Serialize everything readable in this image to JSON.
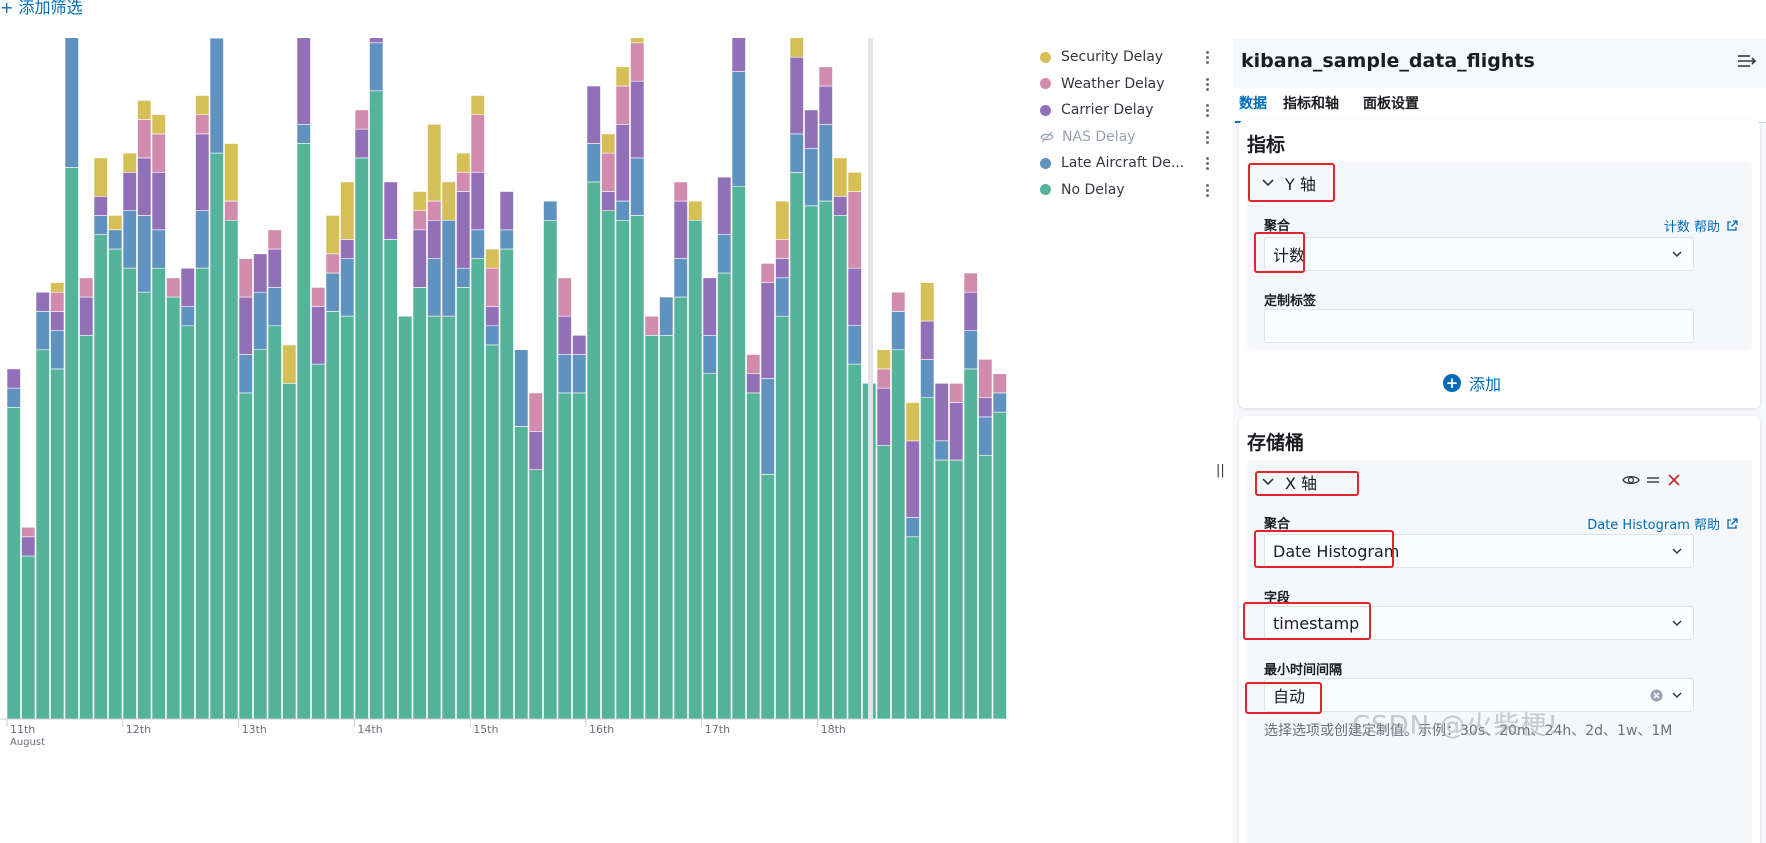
{
  "top_bar": {
    "add_filter": "+ 添加筛选"
  },
  "legend": [
    {
      "label": "Security Delay",
      "color": "#d6bf57",
      "hidden": false
    },
    {
      "label": "Weather Delay",
      "color": "#d18cad",
      "hidden": false
    },
    {
      "label": "Carrier Delay",
      "color": "#9170b8",
      "hidden": false
    },
    {
      "label": "NAS Delay",
      "color": "#98a2b3",
      "hidden": true
    },
    {
      "label": "Late Aircraft De...",
      "color": "#6092c0",
      "hidden": false
    },
    {
      "label": "No Delay",
      "color": "#54b399",
      "hidden": false
    }
  ],
  "chart_data": {
    "type": "bar",
    "stacked": true,
    "x_ticks": [
      "11th",
      "12th",
      "13th",
      "14th",
      "15th",
      "16th",
      "17th",
      "18th"
    ],
    "x_sublabel": "August",
    "grid": false,
    "legend_position": "top-right",
    "series_order": [
      "No Delay",
      "Late Aircraft Delay",
      "NAS Delay",
      "Carrier Delay",
      "Weather Delay",
      "Security Delay"
    ],
    "bars": [
      [
        325,
        20,
        0,
        20,
        0,
        0
      ],
      [
        170,
        0,
        0,
        20,
        10,
        0
      ],
      [
        385,
        40,
        0,
        20,
        0,
        0
      ],
      [
        365,
        40,
        0,
        20,
        20,
        10
      ],
      [
        575,
        140,
        0,
        0,
        80,
        0
      ],
      [
        400,
        0,
        0,
        40,
        20,
        0
      ],
      [
        505,
        20,
        0,
        20,
        0,
        40
      ],
      [
        490,
        20,
        0,
        0,
        0,
        15
      ],
      [
        470,
        60,
        0,
        40,
        0,
        20
      ],
      [
        445,
        80,
        0,
        60,
        40,
        20
      ],
      [
        470,
        40,
        0,
        60,
        40,
        20
      ],
      [
        440,
        0,
        0,
        0,
        20,
        0
      ],
      [
        410,
        20,
        0,
        40,
        0,
        0
      ],
      [
        470,
        60,
        0,
        80,
        20,
        20
      ],
      [
        590,
        120,
        0,
        20,
        60,
        20
      ],
      [
        520,
        0,
        0,
        0,
        20,
        60
      ],
      [
        340,
        40,
        0,
        60,
        40,
        0
      ],
      [
        385,
        60,
        0,
        40,
        0,
        0
      ],
      [
        410,
        40,
        0,
        40,
        20,
        0
      ],
      [
        350,
        0,
        0,
        0,
        0,
        40
      ],
      [
        600,
        20,
        0,
        100,
        0,
        0
      ],
      [
        370,
        0,
        0,
        60,
        20,
        0
      ],
      [
        425,
        40,
        0,
        0,
        20,
        40
      ],
      [
        420,
        60,
        0,
        20,
        0,
        60
      ],
      [
        585,
        0,
        0,
        30,
        20,
        0
      ],
      [
        655,
        50,
        0,
        20,
        40,
        0
      ],
      [
        500,
        0,
        0,
        60,
        0,
        0
      ],
      [
        420,
        0,
        0,
        0,
        0,
        0
      ],
      [
        450,
        0,
        0,
        60,
        20,
        20
      ],
      [
        420,
        60,
        0,
        40,
        20,
        80
      ],
      [
        420,
        100,
        0,
        0,
        0,
        40
      ],
      [
        450,
        20,
        0,
        80,
        20,
        20
      ],
      [
        480,
        30,
        0,
        60,
        60,
        20
      ],
      [
        390,
        20,
        0,
        20,
        40,
        20
      ],
      [
        490,
        20,
        0,
        40,
        0,
        0
      ],
      [
        305,
        80,
        0,
        0,
        0,
        0
      ],
      [
        260,
        0,
        0,
        40,
        40,
        0
      ],
      [
        520,
        20,
        0,
        0,
        0,
        0
      ],
      [
        340,
        40,
        0,
        40,
        40,
        0
      ],
      [
        340,
        40,
        0,
        20,
        0,
        0
      ],
      [
        560,
        40,
        0,
        60,
        0,
        0
      ],
      [
        530,
        0,
        0,
        20,
        40,
        20
      ],
      [
        520,
        20,
        0,
        80,
        40,
        20
      ],
      [
        525,
        60,
        0,
        80,
        40,
        20
      ],
      [
        400,
        0,
        0,
        0,
        20,
        0
      ],
      [
        400,
        40,
        0,
        0,
        0,
        0
      ],
      [
        440,
        40,
        0,
        60,
        20,
        0
      ],
      [
        520,
        0,
        0,
        0,
        0,
        20
      ],
      [
        360,
        40,
        0,
        60,
        0,
        0
      ],
      [
        465,
        40,
        0,
        60,
        0,
        0
      ],
      [
        555,
        120,
        0,
        40,
        0,
        20
      ],
      [
        340,
        0,
        0,
        20,
        20,
        0
      ],
      [
        255,
        100,
        0,
        100,
        20,
        0
      ],
      [
        420,
        40,
        0,
        20,
        20,
        40
      ],
      [
        570,
        40,
        0,
        80,
        0,
        40
      ],
      [
        535,
        60,
        0,
        40,
        0,
        0
      ],
      [
        540,
        80,
        0,
        40,
        20,
        0
      ],
      [
        525,
        0,
        0,
        20,
        0,
        40
      ],
      [
        370,
        40,
        0,
        60,
        80,
        20
      ],
      [
        350,
        0,
        0,
        0,
        0,
        0
      ],
      [
        285,
        0,
        0,
        60,
        20,
        20
      ],
      [
        385,
        40,
        0,
        0,
        20,
        0
      ],
      [
        190,
        20,
        0,
        80,
        0,
        40
      ],
      [
        335,
        40,
        0,
        40,
        0,
        40
      ],
      [
        270,
        20,
        0,
        60,
        0,
        0
      ],
      [
        270,
        0,
        0,
        60,
        20,
        0
      ],
      [
        365,
        40,
        0,
        40,
        20,
        0
      ],
      [
        275,
        40,
        0,
        20,
        40,
        0
      ],
      [
        320,
        20,
        0,
        0,
        20,
        0
      ]
    ]
  },
  "panel": {
    "title": "kibana_sample_data_flights",
    "tabs": [
      "数据",
      "指标和轴",
      "面板设置"
    ],
    "metrics": {
      "section_title": "指标",
      "accordion_label": "Y 轴",
      "agg_label": "聚合",
      "agg_help": "计数 帮助",
      "agg_value": "计数",
      "custom_label": "定制标签",
      "custom_value": "",
      "add_label": "添加"
    },
    "buckets": {
      "section_title": "存储桶",
      "accordion_label": "X 轴",
      "agg_label": "聚合",
      "agg_help": "Date Histogram 帮助",
      "agg_value": "Date Histogram",
      "field_label": "字段",
      "field_value": "timestamp",
      "interval_label": "最小时间间隔",
      "interval_value": "自动",
      "interval_hint": "选择选项或创建定制值。示例：30s、20m、24h、2d、1w、1M"
    }
  },
  "watermark": "CSDN @火柴梗!"
}
